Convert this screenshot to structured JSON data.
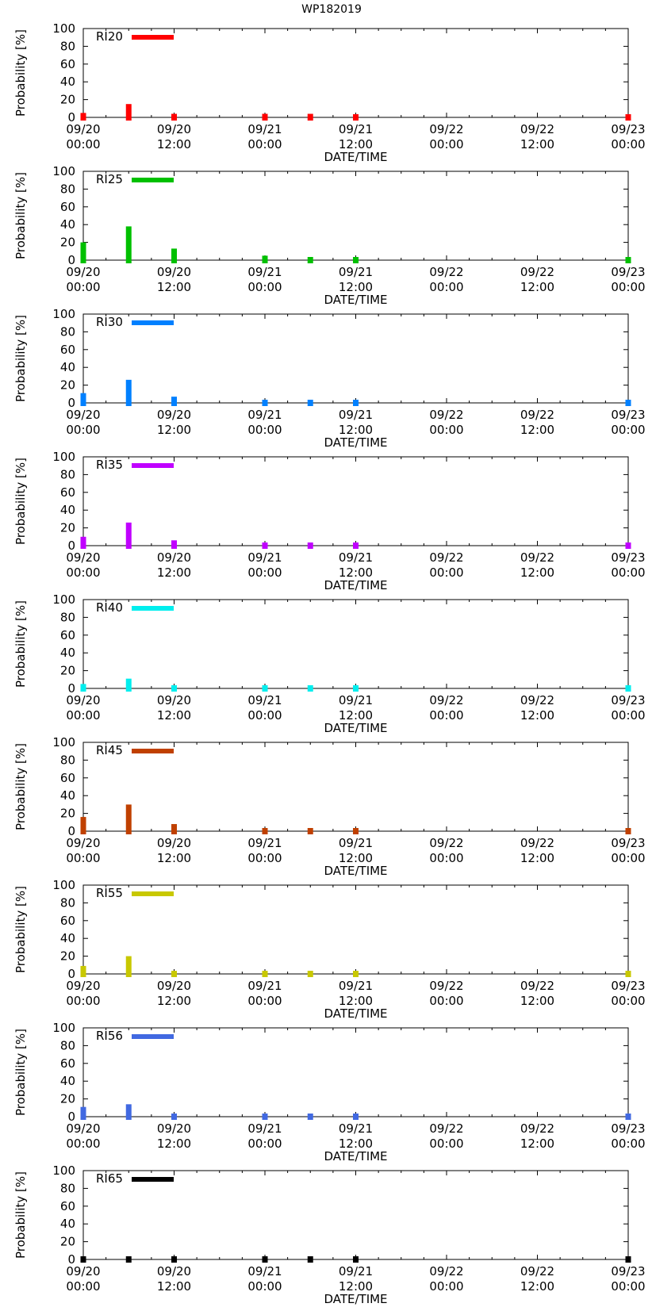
{
  "title": "WP182019",
  "ylabel": "Probability [%]",
  "xlabel": "DATE/TIME",
  "x_ticks": [
    {
      "date": "09/20",
      "time": "00:00",
      "hours": 0
    },
    {
      "date": "09/20",
      "time": "12:00",
      "hours": 12
    },
    {
      "date": "09/21",
      "time": "00:00",
      "hours": 24
    },
    {
      "date": "09/21",
      "time": "12:00",
      "hours": 36
    },
    {
      "date": "09/22",
      "time": "00:00",
      "hours": 48
    },
    {
      "date": "09/22",
      "time": "12:00",
      "hours": 60
    },
    {
      "date": "09/23",
      "time": "00:00",
      "hours": 72
    }
  ],
  "y_ticks": [
    "0",
    "20",
    "40",
    "60",
    "80",
    "100"
  ],
  "chart_data": [
    {
      "type": "bar",
      "name": "RI20",
      "color": "#ff0000",
      "x_hours": [
        0,
        6,
        12,
        24,
        30,
        36,
        72
      ],
      "values": [
        5,
        15,
        4,
        4,
        4,
        2,
        1
      ],
      "ylim": [
        0,
        100
      ],
      "xlim": [
        0,
        72
      ],
      "ylabel": "Probability [%]",
      "xlabel": "DATE/TIME"
    },
    {
      "type": "bar",
      "name": "RI25",
      "color": "#00c000",
      "x_hours": [
        0,
        6,
        12,
        24,
        30,
        36,
        72
      ],
      "values": [
        20,
        38,
        13,
        5,
        3,
        2,
        1
      ],
      "ylim": [
        0,
        100
      ],
      "xlim": [
        0,
        72
      ],
      "ylabel": "Probability [%]",
      "xlabel": "DATE/TIME"
    },
    {
      "type": "bar",
      "name": "RI30",
      "color": "#0080ff",
      "x_hours": [
        0,
        6,
        12,
        24,
        30,
        36,
        72
      ],
      "values": [
        11,
        26,
        7,
        3,
        2,
        1,
        1
      ],
      "ylim": [
        0,
        100
      ],
      "xlim": [
        0,
        72
      ],
      "ylabel": "Probability [%]",
      "xlabel": "DATE/TIME"
    },
    {
      "type": "bar",
      "name": "RI35",
      "color": "#c000ff",
      "x_hours": [
        0,
        6,
        12,
        24,
        30,
        36,
        72
      ],
      "values": [
        10,
        26,
        6,
        3,
        2,
        1,
        1
      ],
      "ylim": [
        0,
        100
      ],
      "xlim": [
        0,
        72
      ],
      "ylabel": "Probability [%]",
      "xlabel": "DATE/TIME"
    },
    {
      "type": "bar",
      "name": "RI40",
      "color": "#00eeee",
      "x_hours": [
        0,
        6,
        12,
        24,
        30,
        36,
        72
      ],
      "values": [
        5,
        11,
        3,
        2,
        1,
        1,
        1
      ],
      "ylim": [
        0,
        100
      ],
      "xlim": [
        0,
        72
      ],
      "ylabel": "Probability [%]",
      "xlabel": "DATE/TIME"
    },
    {
      "type": "bar",
      "name": "RI45",
      "color": "#c04000",
      "x_hours": [
        0,
        6,
        12,
        24,
        30,
        36,
        72
      ],
      "values": [
        16,
        30,
        8,
        2,
        1,
        1,
        1
      ],
      "ylim": [
        0,
        100
      ],
      "xlim": [
        0,
        72
      ],
      "ylabel": "Probability [%]",
      "xlabel": "DATE/TIME"
    },
    {
      "type": "bar",
      "name": "RI55",
      "color": "#c8c800",
      "x_hours": [
        0,
        6,
        12,
        24,
        30,
        36,
        72
      ],
      "values": [
        9,
        20,
        3,
        1,
        1,
        1,
        1
      ],
      "ylim": [
        0,
        100
      ],
      "xlim": [
        0,
        72
      ],
      "ylabel": "Probability [%]",
      "xlabel": "DATE/TIME"
    },
    {
      "type": "bar",
      "name": "RI56",
      "color": "#4169e1",
      "x_hours": [
        0,
        6,
        12,
        24,
        30,
        36,
        72
      ],
      "values": [
        11,
        14,
        1,
        1,
        1,
        1,
        1
      ],
      "ylim": [
        0,
        100
      ],
      "xlim": [
        0,
        72
      ],
      "ylabel": "Probability [%]",
      "xlabel": "DATE/TIME"
    },
    {
      "type": "bar",
      "name": "RI65",
      "color": "#000000",
      "x_hours": [
        0,
        6,
        12,
        24,
        30,
        36,
        72
      ],
      "values": [
        0,
        0,
        0,
        0,
        0,
        0,
        0
      ],
      "ylim": [
        0,
        100
      ],
      "xlim": [
        0,
        72
      ],
      "ylabel": "Probability [%]",
      "xlabel": "DATE/TIME"
    }
  ]
}
